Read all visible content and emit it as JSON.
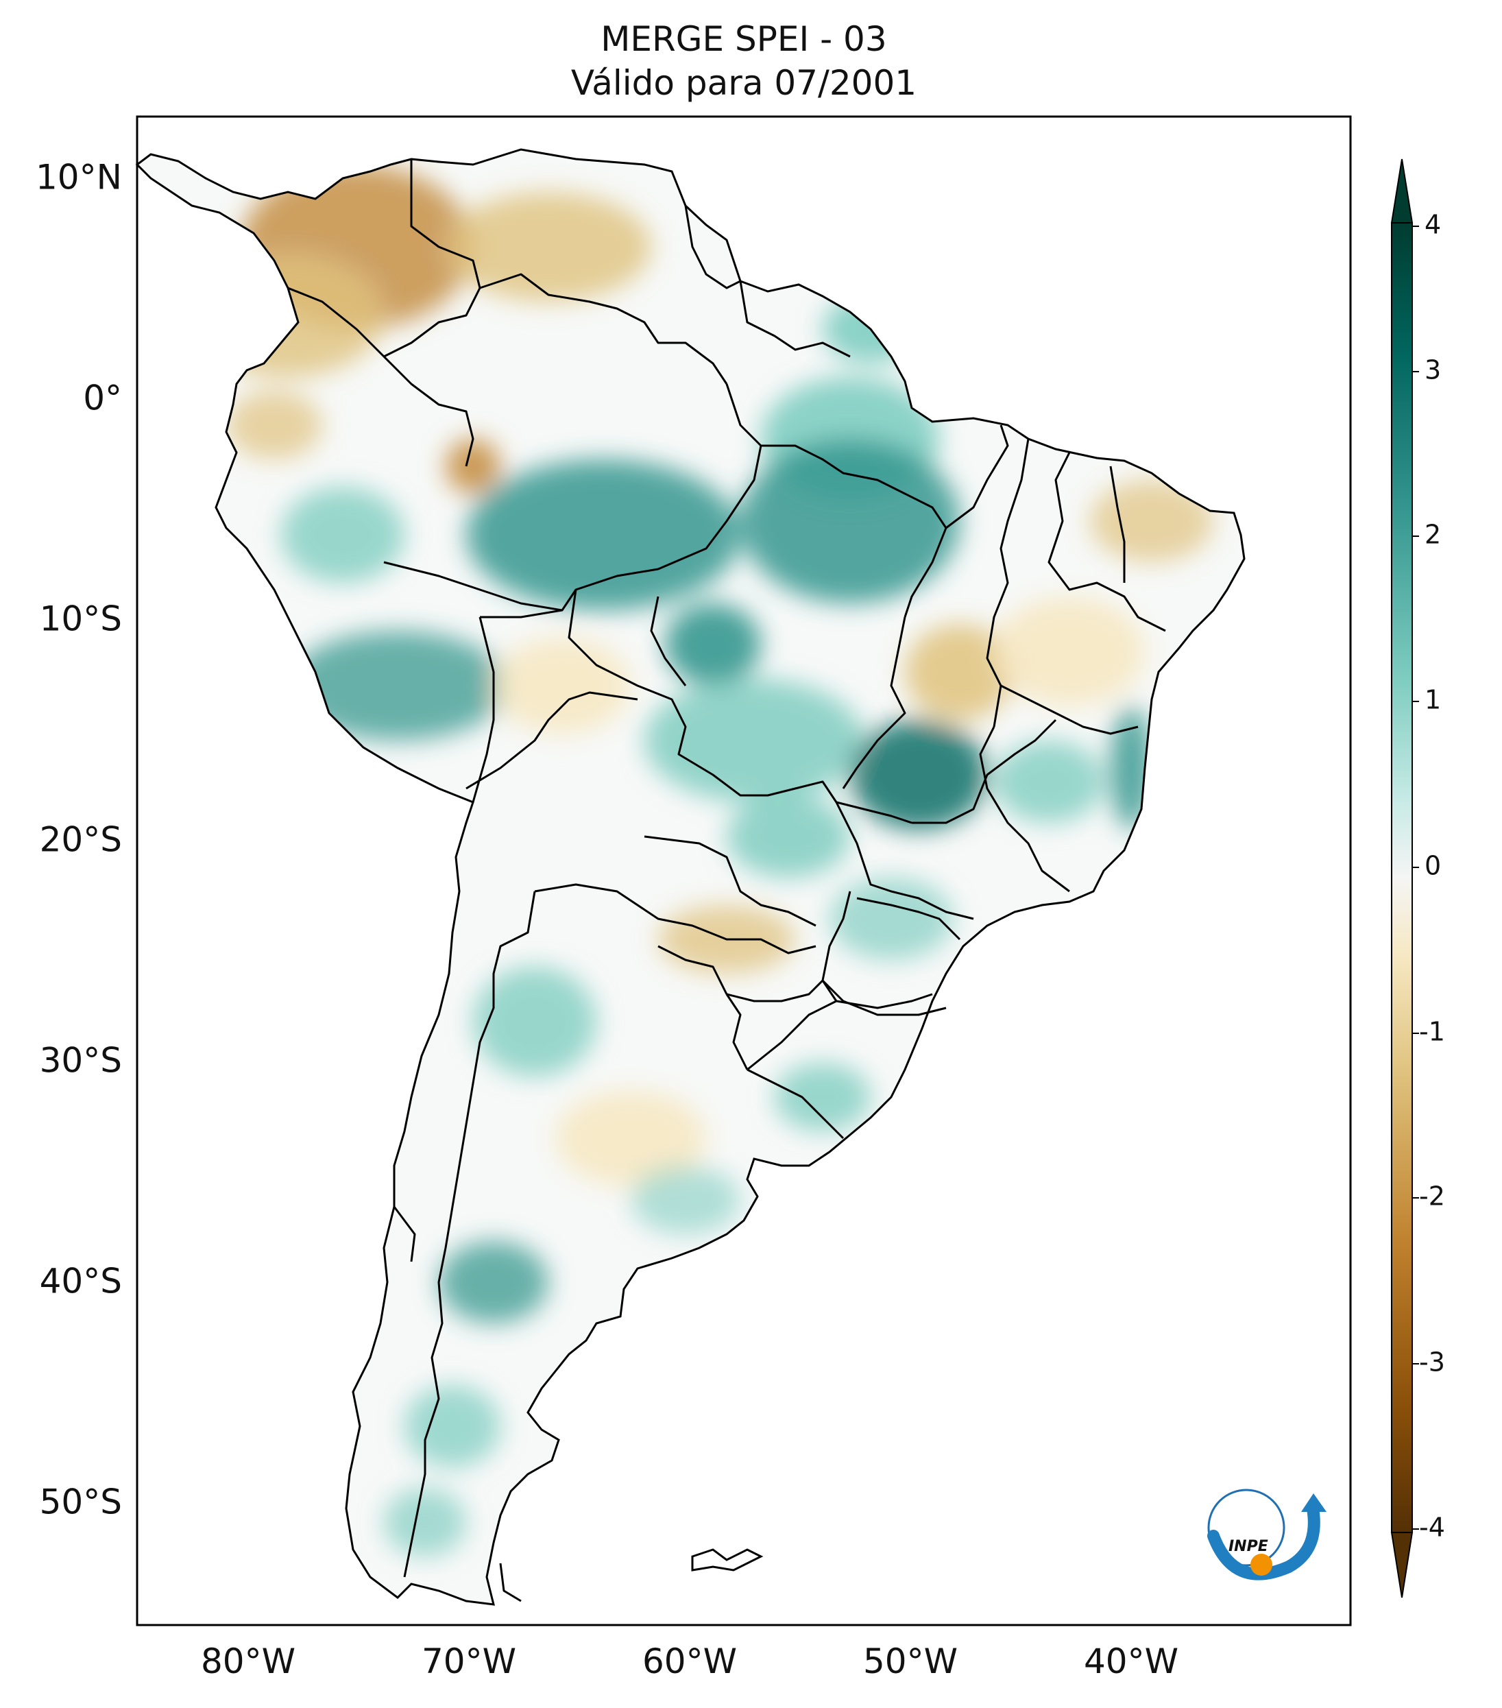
{
  "title": {
    "line1": "MERGE   SPEI - 03",
    "line2": "Válido para 07/2001"
  },
  "latitude_labels": [
    "10°N",
    "0°",
    "10°S",
    "20°S",
    "30°S",
    "40°S",
    "50°S"
  ],
  "longitude_labels": [
    "80°W",
    "70°W",
    "60°W",
    "50°W",
    "40°W"
  ],
  "colorbar": {
    "ticks": [
      "4",
      "3",
      "2",
      "1",
      "0",
      "-1",
      "-2",
      "-3",
      "-4"
    ],
    "colors": {
      "wet_extreme": "#003c30",
      "wet_strong": "#01665e",
      "wet_moderate": "#35978f",
      "wet_mild": "#80cdc1",
      "wet_light": "#c7eae5",
      "neutral": "#f5f5f5",
      "dry_light": "#f6e8c3",
      "dry_mild": "#dfc27d",
      "dry_moderate": "#bf812d",
      "dry_strong": "#8c510a",
      "dry_extreme": "#543005"
    }
  },
  "logo": {
    "text": "INPE"
  }
}
